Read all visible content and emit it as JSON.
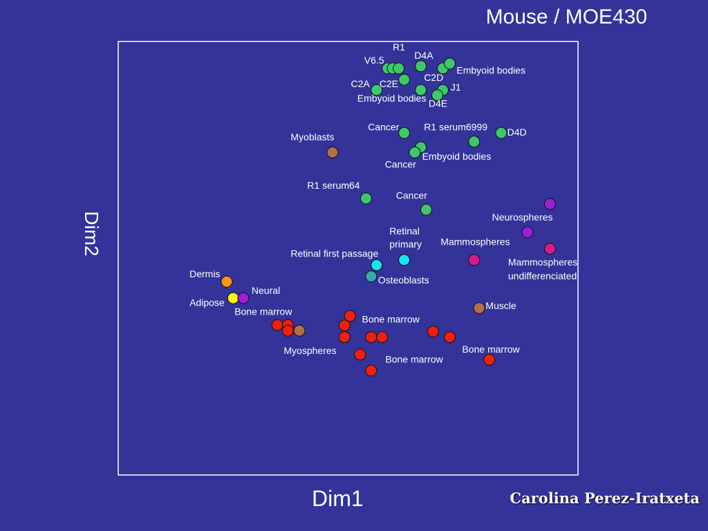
{
  "slide": {
    "title": "Mouse / MOE430",
    "author": "Carolina Perez-Iratxeta"
  },
  "chart_data": {
    "type": "scatter",
    "title": "Mouse / MOE430",
    "xlabel": "Dim1",
    "ylabel": "Dim2",
    "xlim": [
      0,
      100
    ],
    "ylim": [
      0,
      100
    ],
    "grid": false,
    "legend": "none",
    "colors": {
      "green": "#3fc76a",
      "brown": "#b0704a",
      "purple": "#9b1ed8",
      "magenta": "#d81a8c",
      "cyan": "#18e4f0",
      "teal": "#3aa8b0",
      "orange": "#f5951c",
      "yellow": "#ffff00",
      "red": "#f0200c"
    },
    "points": [
      {
        "x": 58.6,
        "y": 93.8,
        "color": "green"
      },
      {
        "x": 59.7,
        "y": 93.8,
        "color": "green"
      },
      {
        "x": 61.0,
        "y": 93.8,
        "color": "green"
      },
      {
        "x": 65.8,
        "y": 94.3,
        "color": "green"
      },
      {
        "x": 70.6,
        "y": 93.8,
        "color": "green"
      },
      {
        "x": 72.1,
        "y": 94.9,
        "color": "green"
      },
      {
        "x": 62.2,
        "y": 91.2,
        "color": "green"
      },
      {
        "x": 56.2,
        "y": 88.8,
        "color": "green"
      },
      {
        "x": 65.8,
        "y": 88.8,
        "color": "green"
      },
      {
        "x": 70.6,
        "y": 88.8,
        "color": "green"
      },
      {
        "x": 69.4,
        "y": 87.6,
        "color": "green"
      },
      {
        "x": 62.2,
        "y": 78.9,
        "color": "green"
      },
      {
        "x": 77.4,
        "y": 76.9,
        "color": "green"
      },
      {
        "x": 83.3,
        "y": 78.9,
        "color": "green"
      },
      {
        "x": 65.8,
        "y": 75.6,
        "color": "green"
      },
      {
        "x": 64.5,
        "y": 74.4,
        "color": "green"
      },
      {
        "x": 53.9,
        "y": 63.8,
        "color": "green"
      },
      {
        "x": 67.0,
        "y": 61.2,
        "color": "green"
      },
      {
        "x": 46.6,
        "y": 74.4,
        "color": "brown"
      },
      {
        "x": 93.9,
        "y": 62.5,
        "color": "purple"
      },
      {
        "x": 89.0,
        "y": 56.0,
        "color": "purple"
      },
      {
        "x": 93.9,
        "y": 52.2,
        "color": "magenta"
      },
      {
        "x": 77.4,
        "y": 49.6,
        "color": "magenta"
      },
      {
        "x": 62.2,
        "y": 49.6,
        "color": "cyan"
      },
      {
        "x": 56.2,
        "y": 48.4,
        "color": "cyan"
      },
      {
        "x": 55.0,
        "y": 45.8,
        "color": "teal"
      },
      {
        "x": 23.6,
        "y": 44.6,
        "color": "orange"
      },
      {
        "x": 25.0,
        "y": 40.8,
        "color": "yellow"
      },
      {
        "x": 27.2,
        "y": 40.8,
        "color": "purple"
      },
      {
        "x": 78.5,
        "y": 38.5,
        "color": "brown"
      },
      {
        "x": 39.4,
        "y": 33.3,
        "color": "brown"
      },
      {
        "x": 50.4,
        "y": 36.7,
        "color": "red"
      },
      {
        "x": 49.2,
        "y": 34.5,
        "color": "red"
      },
      {
        "x": 34.6,
        "y": 34.6,
        "color": "red"
      },
      {
        "x": 36.9,
        "y": 34.6,
        "color": "red"
      },
      {
        "x": 36.9,
        "y": 33.3,
        "color": "red"
      },
      {
        "x": 49.2,
        "y": 31.8,
        "color": "red"
      },
      {
        "x": 55.0,
        "y": 31.8,
        "color": "red"
      },
      {
        "x": 57.4,
        "y": 31.8,
        "color": "red"
      },
      {
        "x": 68.5,
        "y": 33.1,
        "color": "red"
      },
      {
        "x": 72.1,
        "y": 31.8,
        "color": "red"
      },
      {
        "x": 52.6,
        "y": 27.8,
        "color": "red"
      },
      {
        "x": 80.7,
        "y": 26.6,
        "color": "red"
      },
      {
        "x": 55.0,
        "y": 24.1,
        "color": "red"
      }
    ],
    "annotations": [
      {
        "text": "R1",
        "x": 59.7,
        "y": 97.9
      },
      {
        "text": "D4A",
        "x": 64.4,
        "y": 96.0
      },
      {
        "text": "V6.5",
        "x": 53.5,
        "y": 94.9
      },
      {
        "text": "Embyoid bodies",
        "x": 73.6,
        "y": 92.6
      },
      {
        "text": "C2D",
        "x": 66.5,
        "y": 90.9
      },
      {
        "text": "C2A",
        "x": 50.6,
        "y": 89.5
      },
      {
        "text": "C2E",
        "x": 56.8,
        "y": 89.5
      },
      {
        "text": "J1",
        "x": 72.3,
        "y": 88.7
      },
      {
        "text": "Embyoid bodies",
        "x": 52.0,
        "y": 86.1
      },
      {
        "text": "D4E",
        "x": 67.5,
        "y": 84.9
      },
      {
        "text": "Cancer",
        "x": 54.3,
        "y": 79.5
      },
      {
        "text": "R1 serum6999",
        "x": 66.5,
        "y": 79.5
      },
      {
        "text": "D4D",
        "x": 84.6,
        "y": 78.3
      },
      {
        "text": "Myoblasts",
        "x": 37.5,
        "y": 77.2
      },
      {
        "text": "Embyoid bodies",
        "x": 66.1,
        "y": 72.7
      },
      {
        "text": "Cancer",
        "x": 58.0,
        "y": 70.9
      },
      {
        "text": "R1 serum64",
        "x": 41.1,
        "y": 66.0
      },
      {
        "text": "Cancer",
        "x": 60.4,
        "y": 63.7
      },
      {
        "text": "Neurospheres",
        "x": 81.3,
        "y": 58.7
      },
      {
        "text": "Retinal",
        "x": 59.0,
        "y": 55.5
      },
      {
        "text": "primary",
        "x": 59.0,
        "y": 52.5
      },
      {
        "text": "Mammospheres",
        "x": 70.1,
        "y": 53.0
      },
      {
        "text": "Retinal first passage",
        "x": 37.5,
        "y": 50.3
      },
      {
        "text": "Mammospheres",
        "x": 84.8,
        "y": 48.3
      },
      {
        "text": "undifferenciated",
        "x": 84.8,
        "y": 45.1
      },
      {
        "text": "Dermis",
        "x": 15.5,
        "y": 45.6
      },
      {
        "text": "Osteoblasts",
        "x": 56.5,
        "y": 44.2
      },
      {
        "text": "Neural",
        "x": 29.0,
        "y": 41.8
      },
      {
        "text": "Adipose",
        "x": 15.5,
        "y": 39.0
      },
      {
        "text": "Muscle",
        "x": 79.9,
        "y": 38.3
      },
      {
        "text": "Bone marrow",
        "x": 25.3,
        "y": 36.9
      },
      {
        "text": "Bone marrow",
        "x": 53.0,
        "y": 35.2
      },
      {
        "text": "Bone marrow",
        "x": 74.8,
        "y": 28.2
      },
      {
        "text": "Myospheres",
        "x": 36.0,
        "y": 27.9
      },
      {
        "text": "Bone marrow",
        "x": 58.1,
        "y": 25.9
      }
    ]
  }
}
